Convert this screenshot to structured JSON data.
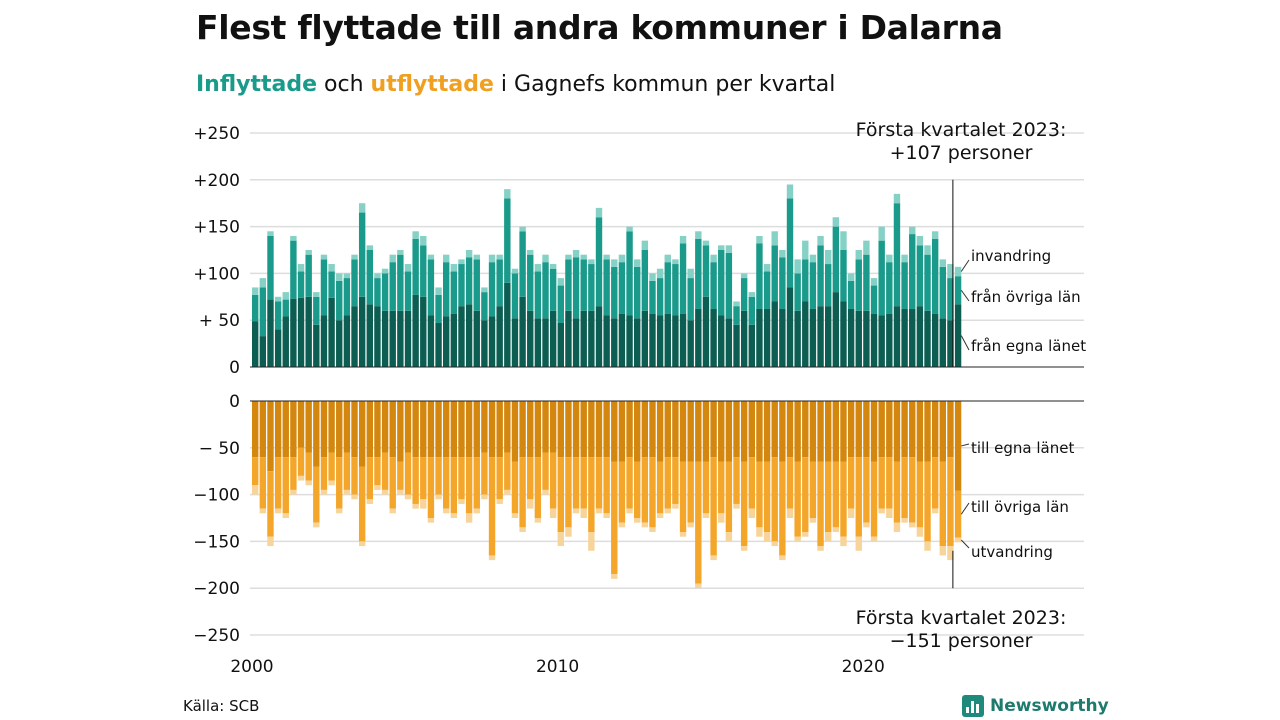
{
  "title": "Flest flyttade till andra kommuner i Dalarna",
  "subtitle": {
    "part1": "Inflyttade",
    "part2": " och ",
    "part3": "utflyttade",
    "part4": " i Gagnefs kommun per kvartal"
  },
  "source": "Källa: SCB",
  "brand": {
    "name": "Newsworthy",
    "icon": "bar-chart-icon",
    "color": "#1f8a7c"
  },
  "colors": {
    "in_local": "#0d5e52",
    "in_other": "#1a9a8a",
    "in_immig": "#86d1c5",
    "out_local": "#d4870f",
    "out_other": "#f4a62a",
    "out_emig": "#f7d49a"
  },
  "chart_data": {
    "type": "bar",
    "stacked": true,
    "x_start": "2000 Q1",
    "x_end": "2023 Q1",
    "xticks": [
      {
        "label": "2000",
        "index": 0
      },
      {
        "label": "2010",
        "index": 40
      },
      {
        "label": "2020",
        "index": 80
      }
    ],
    "yticks_in": [
      {
        "value": 250,
        "label": "+250"
      },
      {
        "value": 200,
        "label": "+200"
      },
      {
        "value": 150,
        "label": "+150"
      },
      {
        "value": 100,
        "label": "+100"
      },
      {
        "value": 50,
        "label": "+ 50"
      },
      {
        "value": 0,
        "label": "0"
      }
    ],
    "yticks_out": [
      {
        "value": 0,
        "label": "0"
      },
      {
        "value": -50,
        "label": "− 50"
      },
      {
        "value": -100,
        "label": "−100"
      },
      {
        "value": -150,
        "label": "−150"
      },
      {
        "value": -200,
        "label": "−200"
      },
      {
        "value": -250,
        "label": "−250"
      }
    ],
    "ylim": [
      -250,
      250
    ],
    "inflow_series_labels": [
      "från egna länet",
      "från övriga län",
      "invandring"
    ],
    "outflow_series_labels": [
      "till egna länet",
      "till övriga län",
      "utvandring"
    ],
    "annotation_in": {
      "line1": "Första kvartalet 2023:",
      "line2": "+107 personer"
    },
    "annotation_out": {
      "line1": "Första kvartalet 2023:",
      "line2": "−151 personer"
    },
    "inflow_total": [
      85,
      95,
      145,
      75,
      80,
      140,
      110,
      125,
      80,
      120,
      110,
      100,
      100,
      120,
      175,
      130,
      100,
      105,
      120,
      125,
      110,
      145,
      140,
      120,
      85,
      120,
      110,
      115,
      125,
      120,
      85,
      120,
      120,
      190,
      105,
      150,
      125,
      110,
      120,
      110,
      95,
      120,
      125,
      120,
      115,
      170,
      120,
      115,
      120,
      150,
      115,
      135,
      100,
      105,
      120,
      115,
      140,
      105,
      145,
      135,
      120,
      130,
      130,
      70,
      100,
      80,
      140,
      110,
      145,
      125,
      195,
      115,
      135,
      120,
      140,
      125,
      160,
      145,
      100,
      125,
      135,
      95,
      150,
      120,
      185,
      120,
      150,
      140,
      130,
      145,
      115,
      110,
      107
    ],
    "inflow_immig": [
      8,
      10,
      5,
      5,
      8,
      5,
      8,
      5,
      5,
      5,
      8,
      8,
      5,
      5,
      10,
      5,
      5,
      5,
      8,
      5,
      8,
      8,
      10,
      5,
      8,
      8,
      8,
      5,
      8,
      5,
      5,
      8,
      5,
      10,
      5,
      5,
      5,
      8,
      8,
      5,
      8,
      5,
      8,
      5,
      5,
      10,
      5,
      8,
      8,
      5,
      8,
      10,
      8,
      10,
      8,
      5,
      8,
      10,
      8,
      5,
      8,
      5,
      8,
      5,
      5,
      5,
      8,
      8,
      15,
      8,
      15,
      15,
      20,
      8,
      10,
      15,
      10,
      20,
      8,
      10,
      15,
      8,
      15,
      8,
      10,
      8,
      8,
      10,
      10,
      8,
      8,
      15,
      10
    ],
    "inflow_other": [
      28,
      52,
      68,
      30,
      18,
      62,
      28,
      45,
      30,
      60,
      28,
      42,
      40,
      50,
      90,
      58,
      30,
      40,
      52,
      60,
      42,
      60,
      55,
      60,
      30,
      58,
      45,
      45,
      50,
      55,
      30,
      58,
      50,
      90,
      48,
      70,
      60,
      50,
      60,
      45,
      40,
      55,
      65,
      55,
      50,
      95,
      60,
      55,
      55,
      90,
      55,
      65,
      35,
      40,
      55,
      55,
      75,
      45,
      75,
      55,
      50,
      70,
      70,
      20,
      35,
      30,
      70,
      40,
      60,
      55,
      95,
      40,
      45,
      50,
      65,
      45,
      70,
      55,
      30,
      55,
      60,
      30,
      80,
      55,
      110,
      50,
      80,
      65,
      60,
      80,
      55,
      45,
      30
    ],
    "inflow_local": [
      49,
      33,
      72,
      40,
      54,
      73,
      74,
      75,
      45,
      55,
      74,
      50,
      55,
      65,
      75,
      67,
      65,
      60,
      60,
      60,
      60,
      77,
      75,
      55,
      47,
      54,
      57,
      65,
      67,
      60,
      50,
      54,
      65,
      90,
      52,
      75,
      60,
      52,
      52,
      60,
      47,
      60,
      52,
      60,
      60,
      65,
      55,
      52,
      57,
      55,
      52,
      60,
      57,
      55,
      57,
      55,
      57,
      50,
      62,
      75,
      62,
      55,
      52,
      45,
      60,
      45,
      62,
      62,
      70,
      62,
      85,
      60,
      70,
      62,
      65,
      65,
      80,
      70,
      62,
      60,
      60,
      57,
      55,
      57,
      65,
      62,
      62,
      65,
      60,
      57,
      52,
      50,
      67
    ],
    "outflow_total": [
      100,
      120,
      155,
      120,
      125,
      100,
      85,
      90,
      135,
      100,
      90,
      120,
      100,
      105,
      155,
      110,
      95,
      100,
      120,
      100,
      105,
      115,
      115,
      130,
      105,
      120,
      125,
      110,
      130,
      120,
      105,
      170,
      110,
      100,
      125,
      140,
      115,
      130,
      100,
      125,
      155,
      145,
      120,
      125,
      160,
      120,
      125,
      190,
      135,
      120,
      130,
      135,
      140,
      125,
      120,
      115,
      145,
      135,
      200,
      125,
      170,
      130,
      150,
      115,
      160,
      125,
      145,
      150,
      155,
      170,
      125,
      150,
      145,
      130,
      160,
      150,
      140,
      155,
      125,
      160,
      135,
      150,
      120,
      125,
      140,
      130,
      135,
      145,
      160,
      120,
      165,
      170,
      151
    ],
    "outflow_emig": [
      10,
      5,
      10,
      5,
      5,
      5,
      5,
      5,
      5,
      5,
      5,
      5,
      5,
      5,
      5,
      5,
      5,
      5,
      5,
      5,
      5,
      5,
      10,
      5,
      5,
      5,
      5,
      5,
      10,
      5,
      5,
      5,
      5,
      5,
      5,
      5,
      10,
      5,
      5,
      10,
      15,
      10,
      5,
      10,
      20,
      5,
      5,
      5,
      5,
      5,
      5,
      5,
      5,
      5,
      5,
      5,
      5,
      5,
      5,
      5,
      5,
      10,
      10,
      5,
      5,
      10,
      10,
      10,
      5,
      5,
      10,
      5,
      5,
      5,
      5,
      10,
      5,
      10,
      10,
      15,
      5,
      5,
      5,
      10,
      10,
      5,
      5,
      10,
      10,
      5,
      10,
      15,
      5
    ],
    "outflow_other": [
      30,
      55,
      70,
      55,
      60,
      35,
      30,
      30,
      60,
      35,
      30,
      55,
      40,
      40,
      80,
      45,
      30,
      40,
      55,
      30,
      45,
      50,
      45,
      65,
      40,
      55,
      60,
      45,
      60,
      55,
      45,
      105,
      45,
      40,
      55,
      75,
      45,
      65,
      40,
      60,
      80,
      75,
      55,
      55,
      80,
      55,
      60,
      120,
      65,
      55,
      60,
      70,
      75,
      55,
      55,
      50,
      75,
      65,
      130,
      55,
      105,
      55,
      75,
      50,
      90,
      55,
      70,
      75,
      90,
      100,
      55,
      80,
      80,
      60,
      90,
      75,
      70,
      80,
      55,
      85,
      70,
      80,
      55,
      55,
      65,
      65,
      70,
      70,
      85,
      55,
      90,
      95,
      50
    ],
    "outflow_local": [
      60,
      60,
      75,
      60,
      60,
      60,
      50,
      55,
      70,
      60,
      55,
      60,
      55,
      60,
      70,
      60,
      60,
      55,
      60,
      65,
      55,
      60,
      60,
      60,
      60,
      60,
      60,
      60,
      60,
      60,
      55,
      60,
      60,
      55,
      65,
      60,
      60,
      60,
      55,
      55,
      60,
      60,
      60,
      60,
      60,
      60,
      60,
      65,
      65,
      60,
      65,
      60,
      60,
      65,
      60,
      60,
      65,
      65,
      65,
      65,
      60,
      65,
      65,
      60,
      65,
      60,
      65,
      65,
      60,
      65,
      60,
      65,
      60,
      65,
      65,
      65,
      65,
      65,
      60,
      60,
      60,
      65,
      60,
      60,
      65,
      60,
      60,
      65,
      65,
      60,
      65,
      60,
      96
    ]
  }
}
